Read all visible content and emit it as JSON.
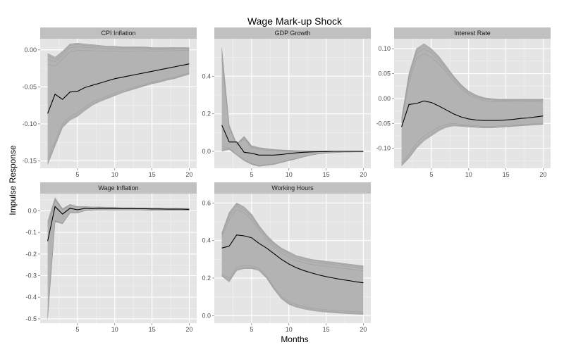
{
  "chart_data": {
    "type": "line",
    "title": "Wage Mark-up Shock",
    "xlabel": "Months",
    "ylabel": "Impulse Response",
    "colors": {
      "panel_bg": "#e5e5e5",
      "grid_major": "#ffffff",
      "grid_minor": "#f2f2f2",
      "strip_bg": "#c0c0c0",
      "band": "#b3b3b3",
      "band_edge": "#9e9e9e",
      "median": "#000000"
    },
    "panels": [
      {
        "name": "CPI Inflation",
        "xlim": [
          0,
          21
        ],
        "ylim": [
          -0.16,
          0.015
        ],
        "xticks": [
          5,
          10,
          15,
          20
        ],
        "yticks": [
          0.0,
          -0.05,
          -0.1,
          -0.15
        ],
        "ytick_labels": [
          "0.00",
          "-0.05",
          "-0.10",
          "-0.15"
        ],
        "x": [
          1,
          2,
          3,
          4,
          5,
          6,
          7,
          8,
          9,
          10,
          11,
          12,
          13,
          14,
          15,
          16,
          17,
          18,
          19,
          20
        ],
        "median": [
          -0.086,
          -0.06,
          -0.067,
          -0.057,
          -0.056,
          -0.051,
          -0.048,
          -0.045,
          -0.042,
          -0.039,
          -0.037,
          -0.035,
          -0.033,
          -0.031,
          -0.029,
          -0.027,
          -0.025,
          -0.023,
          -0.021,
          -0.019
        ],
        "upper": [
          -0.005,
          -0.01,
          -0.002,
          0.008,
          0.009,
          0.008,
          0.007,
          0.006,
          0.005,
          0.005,
          0.004,
          0.004,
          0.004,
          0.004,
          0.003,
          0.003,
          0.003,
          0.003,
          0.003,
          0.003
        ],
        "lower": [
          -0.155,
          -0.13,
          -0.105,
          -0.095,
          -0.09,
          -0.082,
          -0.075,
          -0.07,
          -0.066,
          -0.062,
          -0.058,
          -0.055,
          -0.052,
          -0.049,
          -0.046,
          -0.044,
          -0.041,
          -0.039,
          -0.036,
          -0.033
        ]
      },
      {
        "name": "GDP Growth",
        "xlim": [
          0,
          21
        ],
        "ylim": [
          -0.09,
          0.6
        ],
        "xticks": [
          5,
          10,
          15,
          20
        ],
        "yticks": [
          0.0,
          0.2,
          0.4
        ],
        "ytick_labels": [
          "0.0",
          "0.2",
          "0.4"
        ],
        "x": [
          1,
          2,
          3,
          4,
          5,
          6,
          7,
          8,
          9,
          10,
          11,
          12,
          13,
          14,
          15,
          16,
          17,
          18,
          19,
          20
        ],
        "median": [
          0.14,
          0.05,
          0.05,
          -0.005,
          -0.01,
          -0.02,
          -0.02,
          -0.02,
          -0.017,
          -0.012,
          -0.008,
          -0.005,
          -0.003,
          -0.002,
          -0.001,
          0.0,
          0.0,
          0.0,
          0.0,
          0.0
        ],
        "upper": [
          0.55,
          0.14,
          0.04,
          0.08,
          0.03,
          0.02,
          0.015,
          0.01,
          0.008,
          0.006,
          0.004,
          0.003,
          0.002,
          0.002,
          0.002,
          0.001,
          0.001,
          0.001,
          0.001,
          0.001
        ],
        "lower": [
          0.0,
          0.01,
          -0.02,
          -0.05,
          -0.07,
          -0.08,
          -0.075,
          -0.07,
          -0.06,
          -0.05,
          -0.04,
          -0.03,
          -0.02,
          -0.014,
          -0.01,
          -0.007,
          -0.005,
          -0.004,
          -0.003,
          -0.003
        ]
      },
      {
        "name": "Interest Rate",
        "xlim": [
          0,
          21
        ],
        "ylim": [
          -0.14,
          0.12
        ],
        "xticks": [
          5,
          10,
          15,
          20
        ],
        "yticks": [
          0.1,
          0.05,
          0.0,
          -0.05,
          -0.1
        ],
        "ytick_labels": [
          "0.10",
          "0.05",
          "0.00",
          "-0.05",
          "-0.10"
        ],
        "x": [
          1,
          2,
          3,
          4,
          5,
          6,
          7,
          8,
          9,
          10,
          11,
          12,
          13,
          14,
          15,
          16,
          17,
          18,
          19,
          20
        ],
        "median": [
          -0.057,
          -0.012,
          -0.01,
          -0.005,
          -0.008,
          -0.015,
          -0.023,
          -0.031,
          -0.037,
          -0.041,
          -0.043,
          -0.044,
          -0.044,
          -0.044,
          -0.043,
          -0.042,
          -0.04,
          -0.039,
          -0.037,
          -0.035
        ],
        "upper": [
          -0.04,
          0.05,
          0.1,
          0.11,
          0.1,
          0.085,
          0.065,
          0.045,
          0.028,
          0.015,
          0.007,
          0.002,
          0.0,
          -0.001,
          -0.001,
          -0.001,
          -0.001,
          -0.001,
          -0.001,
          -0.001
        ],
        "lower": [
          -0.135,
          -0.12,
          -0.1,
          -0.085,
          -0.075,
          -0.065,
          -0.058,
          -0.055,
          -0.056,
          -0.057,
          -0.058,
          -0.059,
          -0.059,
          -0.058,
          -0.057,
          -0.056,
          -0.055,
          -0.054,
          -0.053,
          -0.052
        ]
      },
      {
        "name": "Wage Inflation",
        "xlim": [
          0,
          21
        ],
        "ylim": [
          -0.52,
          0.08
        ],
        "xticks": [
          5,
          10,
          15,
          20
        ],
        "yticks": [
          0.0,
          -0.1,
          -0.2,
          -0.3,
          -0.4,
          -0.5
        ],
        "ytick_labels": [
          "0.0",
          "-0.1",
          "-0.2",
          "-0.3",
          "-0.4",
          "-0.5"
        ],
        "x": [
          1,
          2,
          3,
          4,
          5,
          6,
          7,
          8,
          9,
          10,
          11,
          12,
          13,
          14,
          15,
          16,
          17,
          18,
          19,
          20
        ],
        "median": [
          -0.14,
          0.02,
          -0.015,
          0.012,
          0.005,
          0.012,
          0.01,
          0.012,
          0.011,
          0.011,
          0.01,
          0.01,
          0.01,
          0.01,
          0.009,
          0.009,
          0.008,
          0.008,
          0.008,
          0.007
        ],
        "upper": [
          -0.05,
          0.06,
          0.01,
          0.03,
          0.02,
          0.02,
          0.018,
          0.018,
          0.017,
          0.016,
          0.015,
          0.015,
          0.014,
          0.014,
          0.013,
          0.013,
          0.012,
          0.012,
          0.011,
          0.011
        ],
        "lower": [
          -0.5,
          -0.05,
          -0.06,
          -0.01,
          -0.01,
          0.0,
          0.002,
          0.003,
          0.003,
          0.003,
          0.003,
          0.003,
          0.003,
          0.002,
          0.002,
          0.002,
          0.002,
          0.002,
          0.002,
          0.002
        ]
      },
      {
        "name": "Working Hours",
        "xlim": [
          0,
          21
        ],
        "ylim": [
          -0.04,
          0.65
        ],
        "xticks": [
          5,
          10,
          15,
          20
        ],
        "yticks": [
          0.0,
          0.2,
          0.4,
          0.6
        ],
        "ytick_labels": [
          "0.0",
          "0.2",
          "0.4",
          "0.6"
        ],
        "x": [
          1,
          2,
          3,
          4,
          5,
          6,
          7,
          8,
          9,
          10,
          11,
          12,
          13,
          14,
          15,
          16,
          17,
          18,
          19,
          20
        ],
        "median": [
          0.36,
          0.37,
          0.43,
          0.425,
          0.415,
          0.385,
          0.36,
          0.33,
          0.3,
          0.275,
          0.255,
          0.24,
          0.228,
          0.217,
          0.208,
          0.2,
          0.193,
          0.187,
          0.18,
          0.175
        ],
        "upper": [
          0.44,
          0.55,
          0.6,
          0.58,
          0.54,
          0.48,
          0.43,
          0.39,
          0.36,
          0.34,
          0.32,
          0.31,
          0.3,
          0.295,
          0.29,
          0.285,
          0.28,
          0.275,
          0.27,
          0.265
        ],
        "lower": [
          0.21,
          0.18,
          0.24,
          0.25,
          0.25,
          0.24,
          0.2,
          0.14,
          0.09,
          0.06,
          0.045,
          0.035,
          0.028,
          0.022,
          0.018,
          0.015,
          0.012,
          0.01,
          0.008,
          0.006
        ]
      }
    ]
  }
}
